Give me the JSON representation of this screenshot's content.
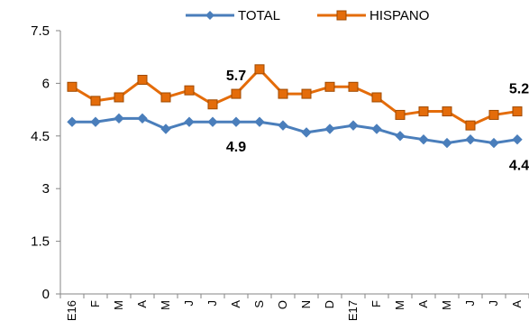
{
  "chart_data": {
    "type": "line",
    "categories": [
      "E16",
      "F",
      "M",
      "A",
      "M",
      "J",
      "J",
      "A",
      "S",
      "O",
      "N",
      "D",
      "E17",
      "F",
      "M",
      "A",
      "M",
      "J",
      "J",
      "A"
    ],
    "ylim": [
      0,
      7.5
    ],
    "yticks": [
      "0",
      "1.5",
      "3",
      "4.5",
      "6",
      "7.5"
    ],
    "grid": false,
    "legend_position": "top",
    "series": [
      {
        "name": "TOTAL",
        "color": "#4a7ebb",
        "marker": "diamond",
        "values": [
          4.9,
          4.9,
          5.0,
          5.0,
          4.7,
          4.9,
          4.9,
          4.9,
          4.9,
          4.8,
          4.6,
          4.7,
          4.8,
          4.7,
          4.5,
          4.4,
          4.3,
          4.4,
          4.3,
          4.4
        ]
      },
      {
        "name": "HISPANO",
        "color": "#e46c0a",
        "marker": "square",
        "values": [
          5.9,
          5.5,
          5.6,
          6.1,
          5.6,
          5.8,
          5.4,
          5.7,
          6.4,
          5.7,
          5.7,
          5.9,
          5.9,
          5.6,
          5.1,
          5.2,
          5.2,
          4.8,
          5.1,
          5.2
        ]
      }
    ],
    "annotations": [
      {
        "text": "5.7",
        "series": "HISPANO",
        "category": "A",
        "index": 7
      },
      {
        "text": "4.9",
        "series": "TOTAL",
        "category": "A",
        "index": 7
      },
      {
        "text": "5.2",
        "series": "HISPANO",
        "category": "A",
        "index": 19
      },
      {
        "text": "4.4",
        "series": "TOTAL",
        "category": "A",
        "index": 19
      }
    ]
  }
}
